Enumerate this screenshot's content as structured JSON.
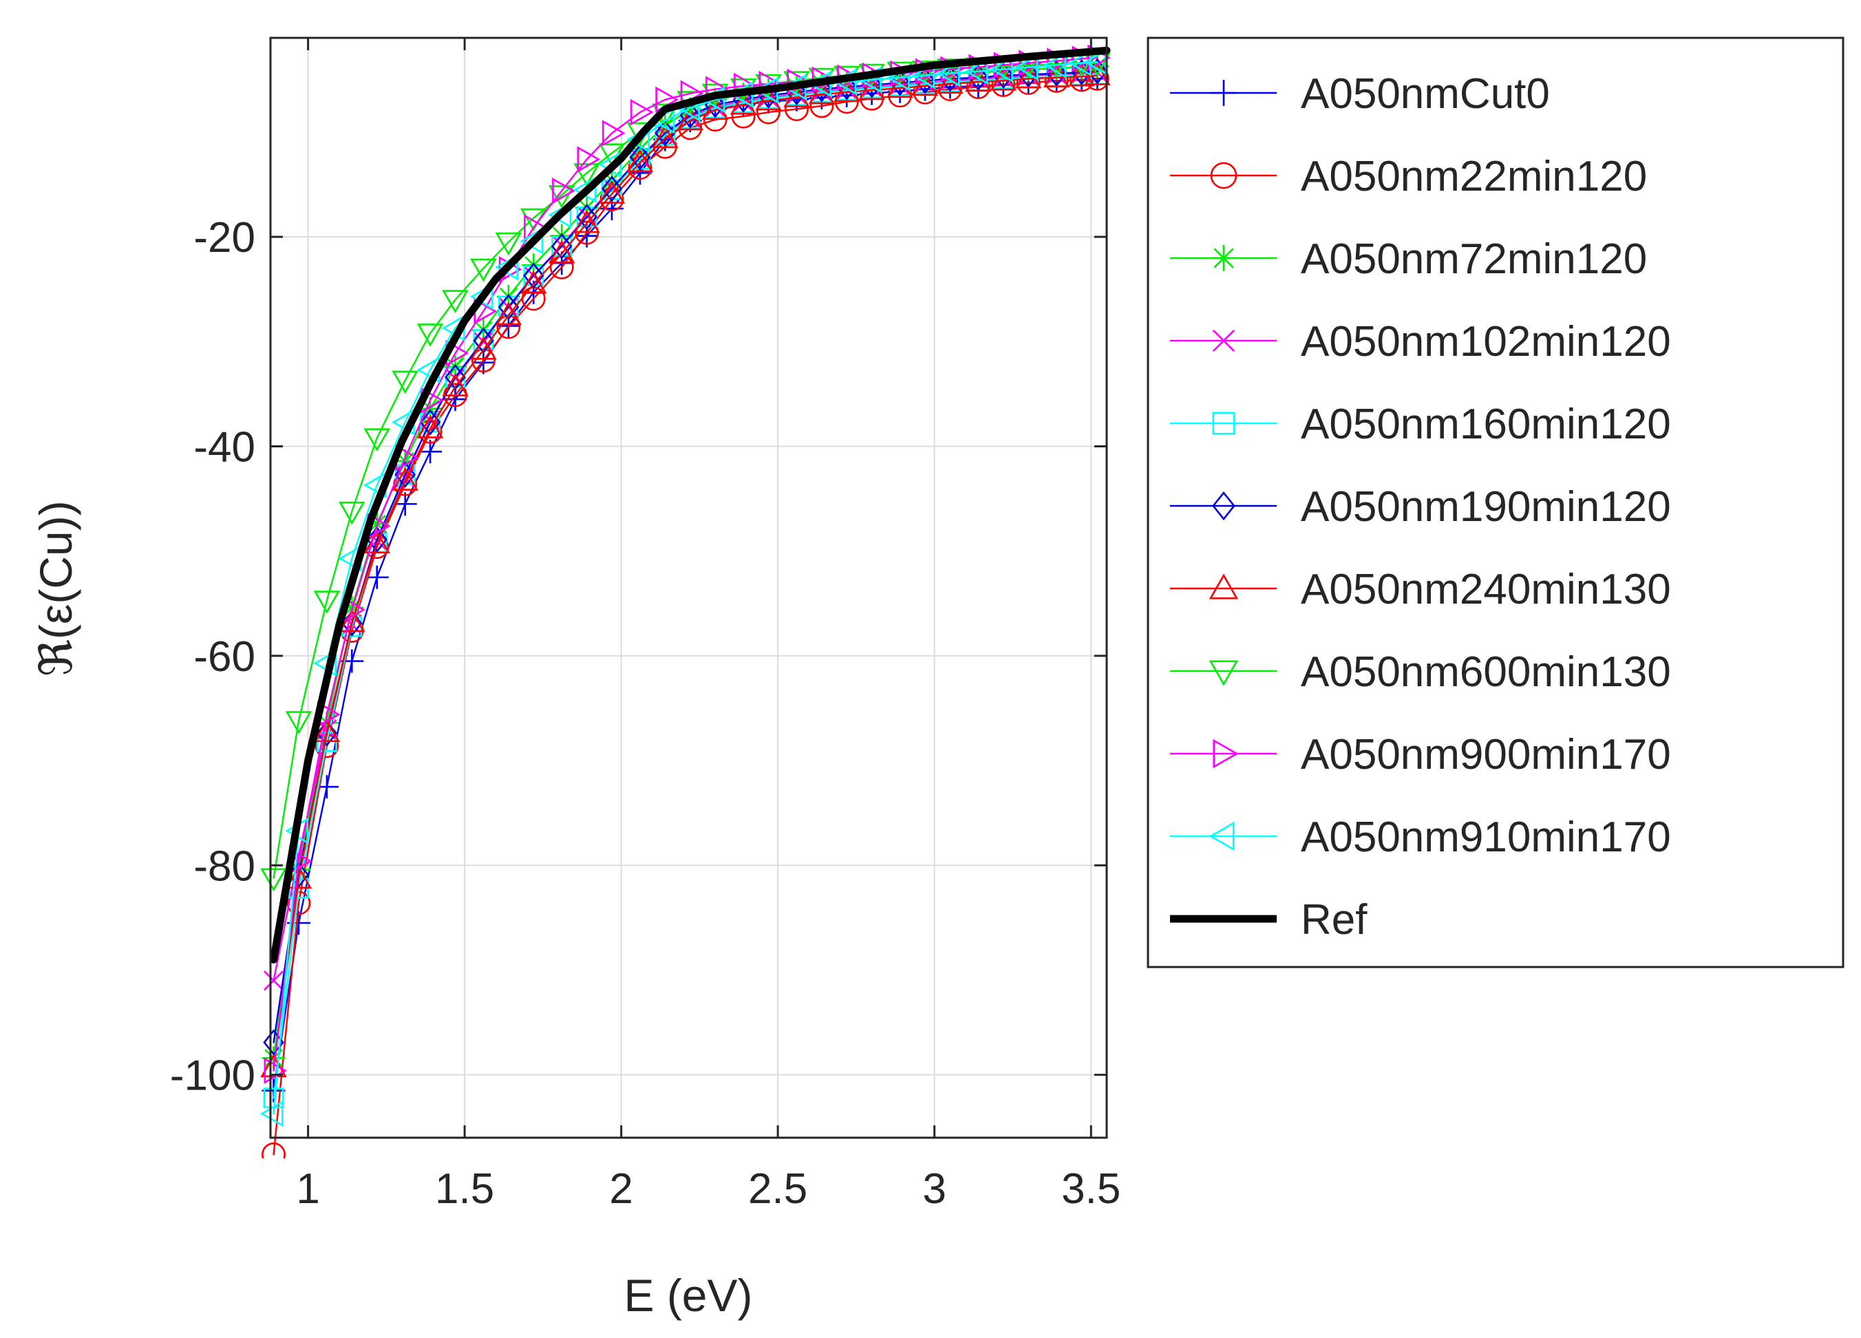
{
  "chart_data": {
    "type": "line",
    "title": "",
    "xlabel": "E (eV)",
    "ylabel": "ℜ(ε(Cu))",
    "xlim": [
      0.88,
      3.55
    ],
    "ylim": [
      -106,
      -1
    ],
    "xticks": [
      1,
      1.5,
      2,
      2.5,
      3,
      3.5
    ],
    "xtick_labels": [
      "1",
      "1.5",
      "2",
      "2.5",
      "3",
      "3.5"
    ],
    "yticks": [
      -20,
      -40,
      -60,
      -80,
      -100
    ],
    "ytick_labels": [
      "-20",
      "-40",
      "-60",
      "-80",
      "-100"
    ],
    "grid": true,
    "legend_position": "outside-right",
    "series": [
      {
        "name": "A050nmCut0",
        "color": "#0000ff",
        "marker": "plus",
        "offset": 1.5,
        "x": [
          0.89,
          0.97,
          1.06,
          1.14,
          1.22,
          1.31,
          1.39,
          1.47,
          1.56,
          1.64,
          1.72,
          1.81,
          1.89,
          1.97,
          2.06,
          2.14,
          2.22,
          2.3,
          2.39,
          2.47,
          2.56,
          2.64,
          2.72,
          2.8,
          2.89,
          2.97,
          3.05,
          3.14,
          3.22,
          3.3,
          3.39,
          3.47,
          3.52
        ],
        "y": [
          -100,
          -84,
          -71,
          -59,
          -51,
          -44,
          -39,
          -34,
          -30.5,
          -27,
          -23.8,
          -21,
          -18.4,
          -15.8,
          -12.4,
          -9.2,
          -7.4,
          -6.3,
          -5.9,
          -5.6,
          -5.4,
          -5.2,
          -5,
          -4.8,
          -4.6,
          -4.4,
          -4.2,
          -4.1,
          -4,
          -3.8,
          -3.6,
          -3.5,
          -3.4
        ]
      },
      {
        "name": "A050nm22min120",
        "color": "#ff0000",
        "marker": "circle",
        "offset": 1.6,
        "x": [
          0.89,
          0.97,
          1.06,
          1.14,
          1.22,
          1.31,
          1.39,
          1.47,
          1.56,
          1.64,
          1.72,
          1.81,
          1.89,
          1.97,
          2.06,
          2.14,
          2.22,
          2.3,
          2.39,
          2.47,
          2.56,
          2.64,
          2.72,
          2.8,
          2.89,
          2.97,
          3.05,
          3.14,
          3.22,
          3.3,
          3.39,
          3.47,
          3.52
        ],
        "y": [
          -106,
          -82,
          -67,
          -56,
          -48,
          -42,
          -37,
          -33.5,
          -30.2,
          -27,
          -24.3,
          -21.3,
          -18,
          -14.8,
          -11.8,
          -9.8,
          -8,
          -7.2,
          -6.9,
          -6.5,
          -6.2,
          -5.9,
          -5.5,
          -5.2,
          -4.9,
          -4.6,
          -4.3,
          -4.1,
          -3.9,
          -3.7,
          -3.5,
          -3.4,
          -3.3
        ]
      },
      {
        "name": "A050nm72min120",
        "color": "#00ee00",
        "marker": "star",
        "offset": 0.4,
        "x": [
          0.89,
          0.97,
          1.06,
          1.14,
          1.22,
          1.31,
          1.39,
          1.47,
          1.56,
          1.64,
          1.72,
          1.81,
          1.89,
          1.97,
          2.06,
          2.14,
          2.22,
          2.3,
          2.39,
          2.47,
          2.56,
          2.64,
          2.72,
          2.8,
          2.89,
          2.97,
          3.05,
          3.14,
          3.22,
          3.3,
          3.39,
          3.47,
          3.52
        ],
        "y": [
          -98,
          -80,
          -66,
          -55,
          -47,
          -41,
          -36,
          -32,
          -28.5,
          -25.3,
          -22.3,
          -19.5,
          -16.8,
          -14.2,
          -11.2,
          -9,
          -7.4,
          -6.5,
          -6,
          -5.6,
          -5.3,
          -5,
          -4.8,
          -4.6,
          -4.4,
          -4.2,
          -4,
          -3.9,
          -3.8,
          -3.6,
          -3.5,
          -3.4,
          -3.3
        ]
      },
      {
        "name": "A050nm102min120",
        "color": "#ff00ff",
        "marker": "x",
        "offset": 1.0,
        "x": [
          0.89,
          0.97,
          1.06,
          1.14,
          1.22,
          1.31,
          1.39,
          1.47,
          1.56,
          1.64,
          1.72,
          1.81,
          1.89,
          1.97,
          2.06,
          2.14,
          2.22,
          2.3,
          2.39,
          2.47,
          2.56,
          2.64,
          2.72,
          2.8,
          2.89,
          2.97,
          3.05,
          3.14,
          3.22,
          3.3,
          3.39,
          3.47,
          3.52
        ],
        "y": [
          -90,
          -78,
          -66,
          -56,
          -48,
          -42,
          -36.5,
          -32.5,
          -29,
          -25.7,
          -22.7,
          -19.8,
          -17,
          -14.3,
          -11.5,
          -9.2,
          -7.6,
          -6.6,
          -6.1,
          -5.7,
          -5.4,
          -5.1,
          -4.9,
          -4.7,
          -4.5,
          -4.3,
          -4.1,
          -3.9,
          -3.8,
          -3.6,
          -3.5,
          -3.4,
          -3.3
        ]
      },
      {
        "name": "A050nm160min120",
        "color": "#00ffff",
        "marker": "square",
        "offset": 1.2,
        "x": [
          0.89,
          0.97,
          1.06,
          1.14,
          1.22,
          1.31,
          1.39,
          1.47,
          1.56,
          1.64,
          1.72,
          1.81,
          1.89,
          1.97,
          2.06,
          2.14,
          2.22,
          2.3,
          2.39,
          2.47,
          2.56,
          2.64,
          2.72,
          2.8,
          2.89,
          2.97,
          3.05,
          3.14,
          3.22,
          3.3,
          3.39,
          3.47,
          3.52
        ],
        "y": [
          -101,
          -81,
          -67,
          -56,
          -48,
          -41.5,
          -36.5,
          -32.2,
          -28.6,
          -25.4,
          -22.5,
          -19.7,
          -16.9,
          -14.3,
          -11.4,
          -9.1,
          -7.5,
          -6.5,
          -6,
          -5.6,
          -5.3,
          -5,
          -4.8,
          -4.6,
          -4.4,
          -4.2,
          -4,
          -3.9,
          -3.7,
          -3.6,
          -3.5,
          -3.4,
          -3.3
        ]
      },
      {
        "name": "A050nm190min120",
        "color": "#0000dd",
        "marker": "diamond",
        "offset": 0.9,
        "x": [
          0.89,
          0.97,
          1.06,
          1.14,
          1.22,
          1.31,
          1.39,
          1.47,
          1.56,
          1.64,
          1.72,
          1.81,
          1.89,
          1.97,
          2.06,
          2.14,
          2.22,
          2.3,
          2.39,
          2.47,
          2.56,
          2.64,
          2.72,
          2.8,
          2.89,
          2.97,
          3.05,
          3.14,
          3.22,
          3.3,
          3.39,
          3.47,
          3.52
        ],
        "y": [
          -96,
          -80,
          -66.5,
          -56,
          -48,
          -41.8,
          -36.8,
          -32.5,
          -29,
          -25.8,
          -22.8,
          -20,
          -17.2,
          -14.5,
          -11.5,
          -9.2,
          -7.5,
          -6.5,
          -6,
          -5.6,
          -5.3,
          -5,
          -4.8,
          -4.6,
          -4.4,
          -4.2,
          -4,
          -3.9,
          -3.7,
          -3.6,
          -3.5,
          -3.4,
          -3.3
        ]
      },
      {
        "name": "A050nm240min130",
        "color": "#ff0000",
        "marker": "triangle-up",
        "offset": 1.3,
        "x": [
          0.89,
          0.97,
          1.06,
          1.14,
          1.22,
          1.31,
          1.39,
          1.47,
          1.56,
          1.64,
          1.72,
          1.81,
          1.89,
          1.97,
          2.06,
          2.14,
          2.22,
          2.3,
          2.39,
          2.47,
          2.56,
          2.64,
          2.72,
          2.8,
          2.89,
          2.97,
          3.05,
          3.14,
          3.22,
          3.3,
          3.39,
          3.47,
          3.52
        ],
        "y": [
          -98,
          -80,
          -66,
          -55.5,
          -48,
          -42,
          -37,
          -33,
          -29.5,
          -26.2,
          -23.2,
          -20.3,
          -17.4,
          -14.6,
          -11.6,
          -9.3,
          -7.6,
          -6.6,
          -6.1,
          -5.7,
          -5.4,
          -5.1,
          -4.9,
          -4.7,
          -4.5,
          -4.3,
          -4.1,
          -3.9,
          -3.8,
          -3.6,
          -3.5,
          -3.4,
          -3.3
        ]
      },
      {
        "name": "A050nm600min130",
        "color": "#00ee00",
        "marker": "triangle-down",
        "offset": 0.2,
        "x": [
          0.89,
          0.97,
          1.06,
          1.14,
          1.22,
          1.31,
          1.39,
          1.47,
          1.56,
          1.64,
          1.72,
          1.81,
          1.89,
          1.97,
          2.06,
          2.14,
          2.22,
          2.3,
          2.39,
          2.47,
          2.56,
          2.64,
          2.72,
          2.8,
          2.89,
          2.97,
          3.05,
          3.14,
          3.22,
          3.3,
          3.39,
          3.47,
          3.52
        ],
        "y": [
          -81,
          -66,
          -54.5,
          -46,
          -39,
          -33.5,
          -29,
          -25.8,
          -22.8,
          -20.3,
          -18,
          -15.8,
          -13.7,
          -11.8,
          -9.8,
          -8,
          -6.8,
          -6.1,
          -5.6,
          -5.2,
          -4.9,
          -4.6,
          -4.4,
          -4.2,
          -4,
          -3.9,
          -3.7,
          -3.6,
          -3.5,
          -3.4,
          -3.3,
          -3.2,
          -3.2
        ]
      },
      {
        "name": "A050nm900min170",
        "color": "#ff00ff",
        "marker": "triangle-right",
        "offset": 0.6,
        "x": [
          0.89,
          0.97,
          1.06,
          1.14,
          1.22,
          1.31,
          1.39,
          1.47,
          1.56,
          1.64,
          1.72,
          1.81,
          1.89,
          1.97,
          2.06,
          2.14,
          2.22,
          2.3,
          2.39,
          2.47,
          2.56,
          2.64,
          2.72,
          2.8,
          2.89,
          2.97,
          3.05,
          3.14,
          3.22,
          3.3,
          3.39,
          3.47,
          3.52
        ],
        "y": [
          -99,
          -79,
          -65,
          -55,
          -47,
          -40.5,
          -35,
          -30.5,
          -26.5,
          -22.5,
          -18.5,
          -15,
          -12,
          -9.5,
          -7.5,
          -6.3,
          -5.7,
          -5.3,
          -5,
          -4.8,
          -4.6,
          -4.4,
          -4.2,
          -4,
          -3.8,
          -3.6,
          -3.4,
          -3.2,
          -3,
          -2.8,
          -2.6,
          -2.4,
          -2.3
        ]
      },
      {
        "name": "A050nm910min170",
        "color": "#00ffff",
        "marker": "triangle-left",
        "offset": 0.7,
        "x": [
          0.89,
          0.97,
          1.06,
          1.14,
          1.22,
          1.31,
          1.39,
          1.47,
          1.56,
          1.64,
          1.72,
          1.81,
          1.89,
          1.97,
          2.06,
          2.14,
          2.22,
          2.3,
          2.39,
          2.47,
          2.56,
          2.64,
          2.72,
          2.8,
          2.89,
          2.97,
          3.05,
          3.14,
          3.22,
          3.3,
          3.39,
          3.47,
          3.52
        ],
        "y": [
          -103,
          -76,
          -60,
          -50,
          -43,
          -37,
          -32,
          -28,
          -25,
          -22.2,
          -19.7,
          -17.2,
          -14.8,
          -12.4,
          -10,
          -8.2,
          -7,
          -6.2,
          -5.7,
          -5.3,
          -5,
          -4.7,
          -4.5,
          -4.3,
          -4.1,
          -3.9,
          -3.7,
          -3.5,
          -3.3,
          -3.1,
          -2.9,
          -2.7,
          -2.6
        ]
      },
      {
        "name": "Ref",
        "color": "#000000",
        "marker": "none",
        "offset": 0,
        "x": [
          0.89,
          1.0,
          1.1,
          1.2,
          1.3,
          1.4,
          1.5,
          1.6,
          1.7,
          1.8,
          1.9,
          2.0,
          2.07,
          2.14,
          2.3,
          2.5,
          2.8,
          3.0,
          3.3,
          3.55
        ],
        "y": [
          -89,
          -70,
          -57,
          -47,
          -39.5,
          -33.5,
          -28,
          -24,
          -21,
          -18,
          -15.3,
          -12.5,
          -10,
          -7.8,
          -6.5,
          -5.8,
          -4.5,
          -3.6,
          -2.8,
          -2.2
        ]
      }
    ]
  }
}
